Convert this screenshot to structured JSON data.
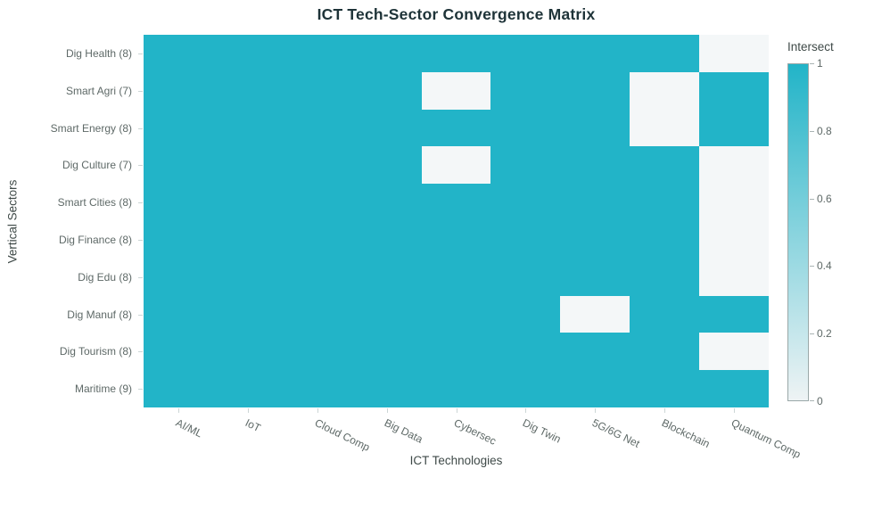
{
  "title": "ICT Tech-Sector Convergence Matrix",
  "chart_data": {
    "type": "heatmap",
    "title": "ICT Tech-Sector Convergence Matrix",
    "xlabel": "ICT Technologies",
    "ylabel": "Vertical Sectors",
    "x_categories": [
      "AI/ML",
      "IoT",
      "Cloud Comp",
      "Big Data",
      "Cybersec",
      "Dig Twin",
      "5G/6G Net",
      "Blockchain",
      "Quantum Comp"
    ],
    "y_categories": [
      "Dig Health (8)",
      "Smart Agri (7)",
      "Smart Energy (8)",
      "Dig Culture (7)",
      "Smart Cities (8)",
      "Dig Finance (8)",
      "Dig Edu (8)",
      "Dig Manuf (8)",
      "Dig Tourism (8)",
      "Maritime (9)"
    ],
    "values": [
      [
        1,
        1,
        1,
        1,
        1,
        1,
        1,
        1,
        0
      ],
      [
        1,
        1,
        1,
        1,
        0,
        1,
        1,
        0,
        1
      ],
      [
        1,
        1,
        1,
        1,
        1,
        1,
        1,
        0,
        1
      ],
      [
        1,
        1,
        1,
        1,
        0,
        1,
        1,
        1,
        0
      ],
      [
        1,
        1,
        1,
        1,
        1,
        1,
        1,
        1,
        0
      ],
      [
        1,
        1,
        1,
        1,
        1,
        1,
        1,
        1,
        0
      ],
      [
        1,
        1,
        1,
        1,
        1,
        1,
        1,
        1,
        0
      ],
      [
        1,
        1,
        1,
        1,
        1,
        1,
        0,
        1,
        1
      ],
      [
        1,
        1,
        1,
        1,
        1,
        1,
        1,
        1,
        0
      ],
      [
        1,
        1,
        1,
        1,
        1,
        1,
        1,
        1,
        1
      ]
    ],
    "value_range": [
      0,
      1
    ],
    "legend_position": "right",
    "grid": false,
    "colorbar": {
      "title": "Intersect",
      "tick_labels": [
        "1",
        "0.8",
        "0.6",
        "0.4",
        "0.2",
        "0"
      ],
      "tick_values": [
        1,
        0.8,
        0.6,
        0.4,
        0.2,
        0
      ]
    },
    "colors": {
      "high": "#22b4c8",
      "low": "#f4f7f8",
      "colorbar_low": "#eef3f4"
    }
  }
}
